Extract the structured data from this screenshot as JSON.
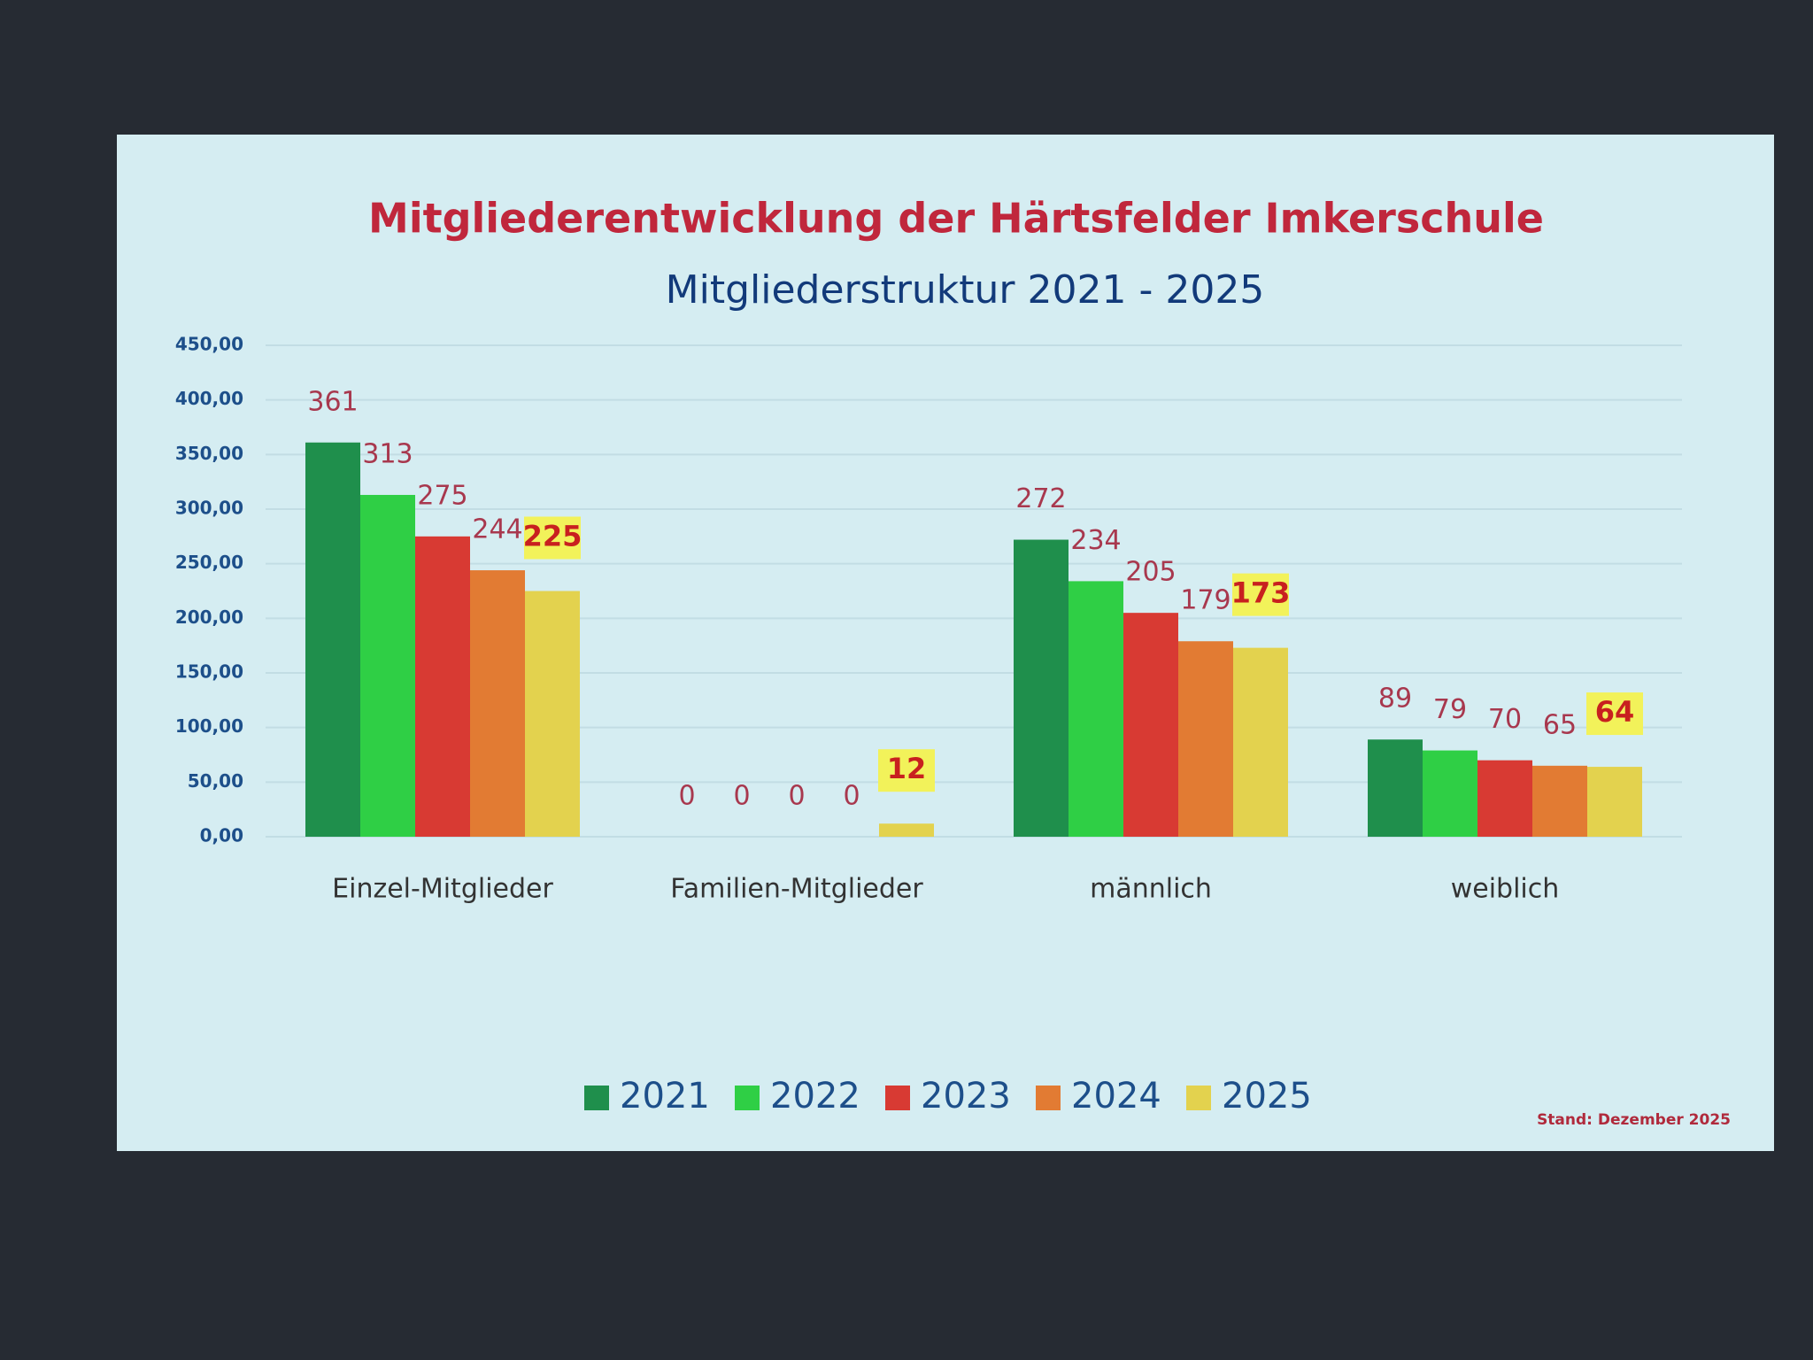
{
  "chart_data": {
    "type": "bar",
    "title": "Mitgliederentwicklung der Härtsfelder Imkerschule",
    "subtitle": "Mitgliederstruktur 2021 - 2025",
    "categories": [
      "Einzel-Mitglieder",
      "Familien-Mitglieder",
      "männlich",
      "weiblich"
    ],
    "series": [
      {
        "name": "2021",
        "color": "#1f8f4c",
        "values": [
          361,
          0,
          272,
          89
        ]
      },
      {
        "name": "2022",
        "color": "#2fcf45",
        "values": [
          313,
          0,
          234,
          79
        ]
      },
      {
        "name": "2023",
        "color": "#d83a33",
        "values": [
          275,
          0,
          205,
          70
        ]
      },
      {
        "name": "2024",
        "color": "#e27b33",
        "values": [
          244,
          0,
          179,
          65
        ]
      },
      {
        "name": "2025",
        "color": "#e3d24e",
        "values": [
          225,
          12,
          173,
          64
        ]
      }
    ],
    "ylim": [
      0,
      450
    ],
    "yticks": [
      {
        "value": 0,
        "label": "0,00"
      },
      {
        "value": 50,
        "label": "50,00"
      },
      {
        "value": 100,
        "label": "100,00"
      },
      {
        "value": 150,
        "label": "150,00"
      },
      {
        "value": 200,
        "label": "200,00"
      },
      {
        "value": 250,
        "label": "250,00"
      },
      {
        "value": 300,
        "label": "300,00"
      },
      {
        "value": 350,
        "label": "350,00"
      },
      {
        "value": 400,
        "label": "400,00"
      },
      {
        "value": 450,
        "label": "450,00"
      }
    ],
    "grid": true,
    "legend": "bottom",
    "footnote": "Stand: Dezember 2025"
  }
}
